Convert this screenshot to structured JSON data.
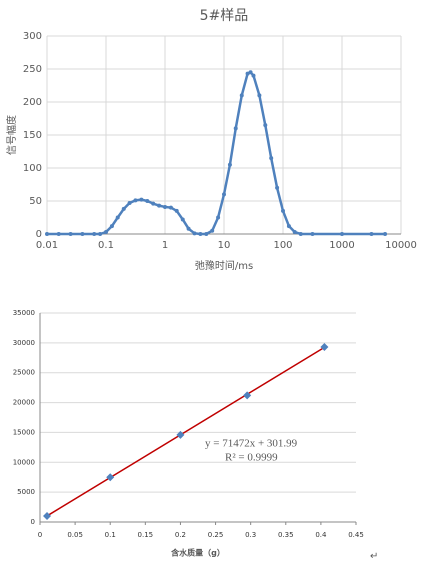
{
  "chart_data": [
    {
      "type": "line",
      "title": "5#样品",
      "ylabel": "信号幅度",
      "xlabel": "弛豫时间/ms",
      "xscale": "log",
      "grid": true,
      "x": [
        0.01,
        0.0158,
        0.0251,
        0.0398,
        0.0631,
        0.0794,
        0.1,
        0.126,
        0.158,
        0.2,
        0.251,
        0.316,
        0.398,
        0.501,
        0.631,
        0.794,
        1,
        1.26,
        1.58,
        2,
        2.51,
        3.16,
        3.98,
        5.01,
        6.31,
        7.94,
        10,
        12.6,
        15.8,
        20,
        25.1,
        28.2,
        31.6,
        39.8,
        50.1,
        63.1,
        79.4,
        100,
        126,
        158,
        200,
        316,
        1000,
        3160,
        5370
      ],
      "values": [
        0,
        0,
        0,
        0,
        0,
        0,
        3,
        12,
        25,
        38,
        47,
        51,
        52,
        50,
        46,
        43,
        41,
        40,
        35,
        22,
        8,
        1,
        0,
        0,
        5,
        25,
        60,
        105,
        160,
        210,
        243,
        245,
        240,
        210,
        165,
        115,
        70,
        35,
        12,
        3,
        0,
        0,
        0,
        0,
        0
      ],
      "color": "#4f81bd",
      "xlim": [
        0.01,
        10000
      ],
      "xticks": [
        0.01,
        0.1,
        1,
        10,
        100,
        1000,
        10000
      ],
      "ylim": [
        0,
        300
      ],
      "yticks": [
        0,
        50,
        100,
        150,
        200,
        250,
        300
      ]
    },
    {
      "type": "scatter",
      "xlabel": "含水质量（g）",
      "grid": true,
      "x": [
        0.01,
        0.1,
        0.2,
        0.295,
        0.405
      ],
      "values": [
        1000,
        7500,
        14600,
        21200,
        29300
      ],
      "color": "#4f81bd",
      "trendline": {
        "slope": 71472,
        "intercept": 301.99,
        "color": "#c00000",
        "equation": "y = 71472x + 301.99",
        "r2": "R² = 0.9999"
      },
      "xlim": [
        0,
        0.45
      ],
      "xticks": [
        0,
        0.05,
        0.1,
        0.15,
        0.2,
        0.25,
        0.3,
        0.35,
        0.4,
        0.45
      ],
      "ylim": [
        0,
        35000
      ],
      "yticks": [
        0,
        5000,
        10000,
        15000,
        20000,
        25000,
        30000,
        35000
      ],
      "paragraph_mark": "↵"
    }
  ]
}
